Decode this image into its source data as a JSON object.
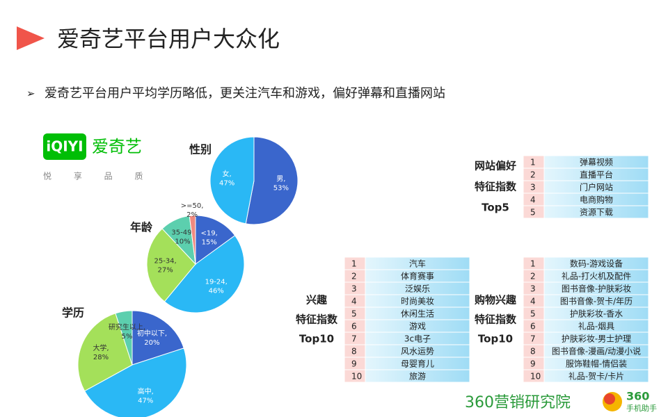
{
  "title": "爱奇艺平台用户大众化",
  "bullet": "爱奇艺平台用户平均学历略低，更关注汽车和游戏，偏好弹幕和直播网站",
  "logo": {
    "brand": "iQIYI",
    "name": "爱奇艺",
    "slogan": "悦 享 品 质"
  },
  "chart_data": [
    {
      "type": "pie",
      "title": "性别",
      "categories": [
        "男",
        "女"
      ],
      "values": [
        53,
        47
      ],
      "value_labels": [
        "男, 53%",
        "女, 47%"
      ],
      "colors": [
        "#3a66cc",
        "#2ab8f5"
      ]
    },
    {
      "type": "pie",
      "title": "年龄",
      "categories": [
        "<19",
        "19-24",
        "25-34",
        "35-49",
        ">=50"
      ],
      "values": [
        15,
        46,
        27,
        10,
        2
      ],
      "value_labels": [
        "<19, 15%",
        "19-24, 46%",
        "25-34, 27%",
        "35-49, 10%",
        ">=50, 2%"
      ],
      "colors": [
        "#3a66cc",
        "#2ab8f5",
        "#a4e05a",
        "#5ccfae",
        "#f08a80"
      ]
    },
    {
      "type": "pie",
      "title": "学历",
      "categories": [
        "初中以下",
        "高中",
        "大学",
        "研究生以上"
      ],
      "values": [
        20,
        47,
        28,
        5
      ],
      "value_labels": [
        "初中以下, 20%",
        "高中, 47%",
        "大学, 28%",
        "研究生以上, 5%"
      ],
      "colors": [
        "#3a66cc",
        "#2ab8f5",
        "#a4e05a",
        "#5ccfae"
      ]
    }
  ],
  "tables": [
    {
      "title": [
        "网站偏好",
        "特征指数",
        "Top5"
      ],
      "ranks": [
        "1",
        "2",
        "3",
        "4",
        "5"
      ],
      "items": [
        "弹幕视频",
        "直播平台",
        "门户网站",
        "电商购物",
        "资源下载"
      ]
    },
    {
      "title": [
        "兴趣",
        "特征指数",
        "Top10"
      ],
      "ranks": [
        "1",
        "2",
        "3",
        "4",
        "5",
        "6",
        "7",
        "8",
        "9",
        "10"
      ],
      "items": [
        "汽车",
        "体育赛事",
        "泛娱乐",
        "时尚美妆",
        "休闲生活",
        "游戏",
        "3c电子",
        "风水运势",
        "母婴育儿",
        "旅游"
      ]
    },
    {
      "title": [
        "购物兴趣",
        "特征指数",
        "Top10"
      ],
      "ranks": [
        "1",
        "2",
        "3",
        "4",
        "5",
        "6",
        "7",
        "8",
        "9",
        "10"
      ],
      "items": [
        "数码-游戏设备",
        "礼品-打火机及配件",
        "图书音像-护肤彩妆",
        "图书音像-贺卡/年历",
        "护肤彩妆-香水",
        "礼品-烟具",
        "护肤彩妆-男士护理",
        "图书音像-漫画/动漫小说",
        "服饰鞋帽-情侣装",
        "礼品-贺卡/卡片"
      ]
    }
  ],
  "footer": {
    "left": "360营销研究院",
    "right_top": "360",
    "right_bottom": "手机助手"
  }
}
